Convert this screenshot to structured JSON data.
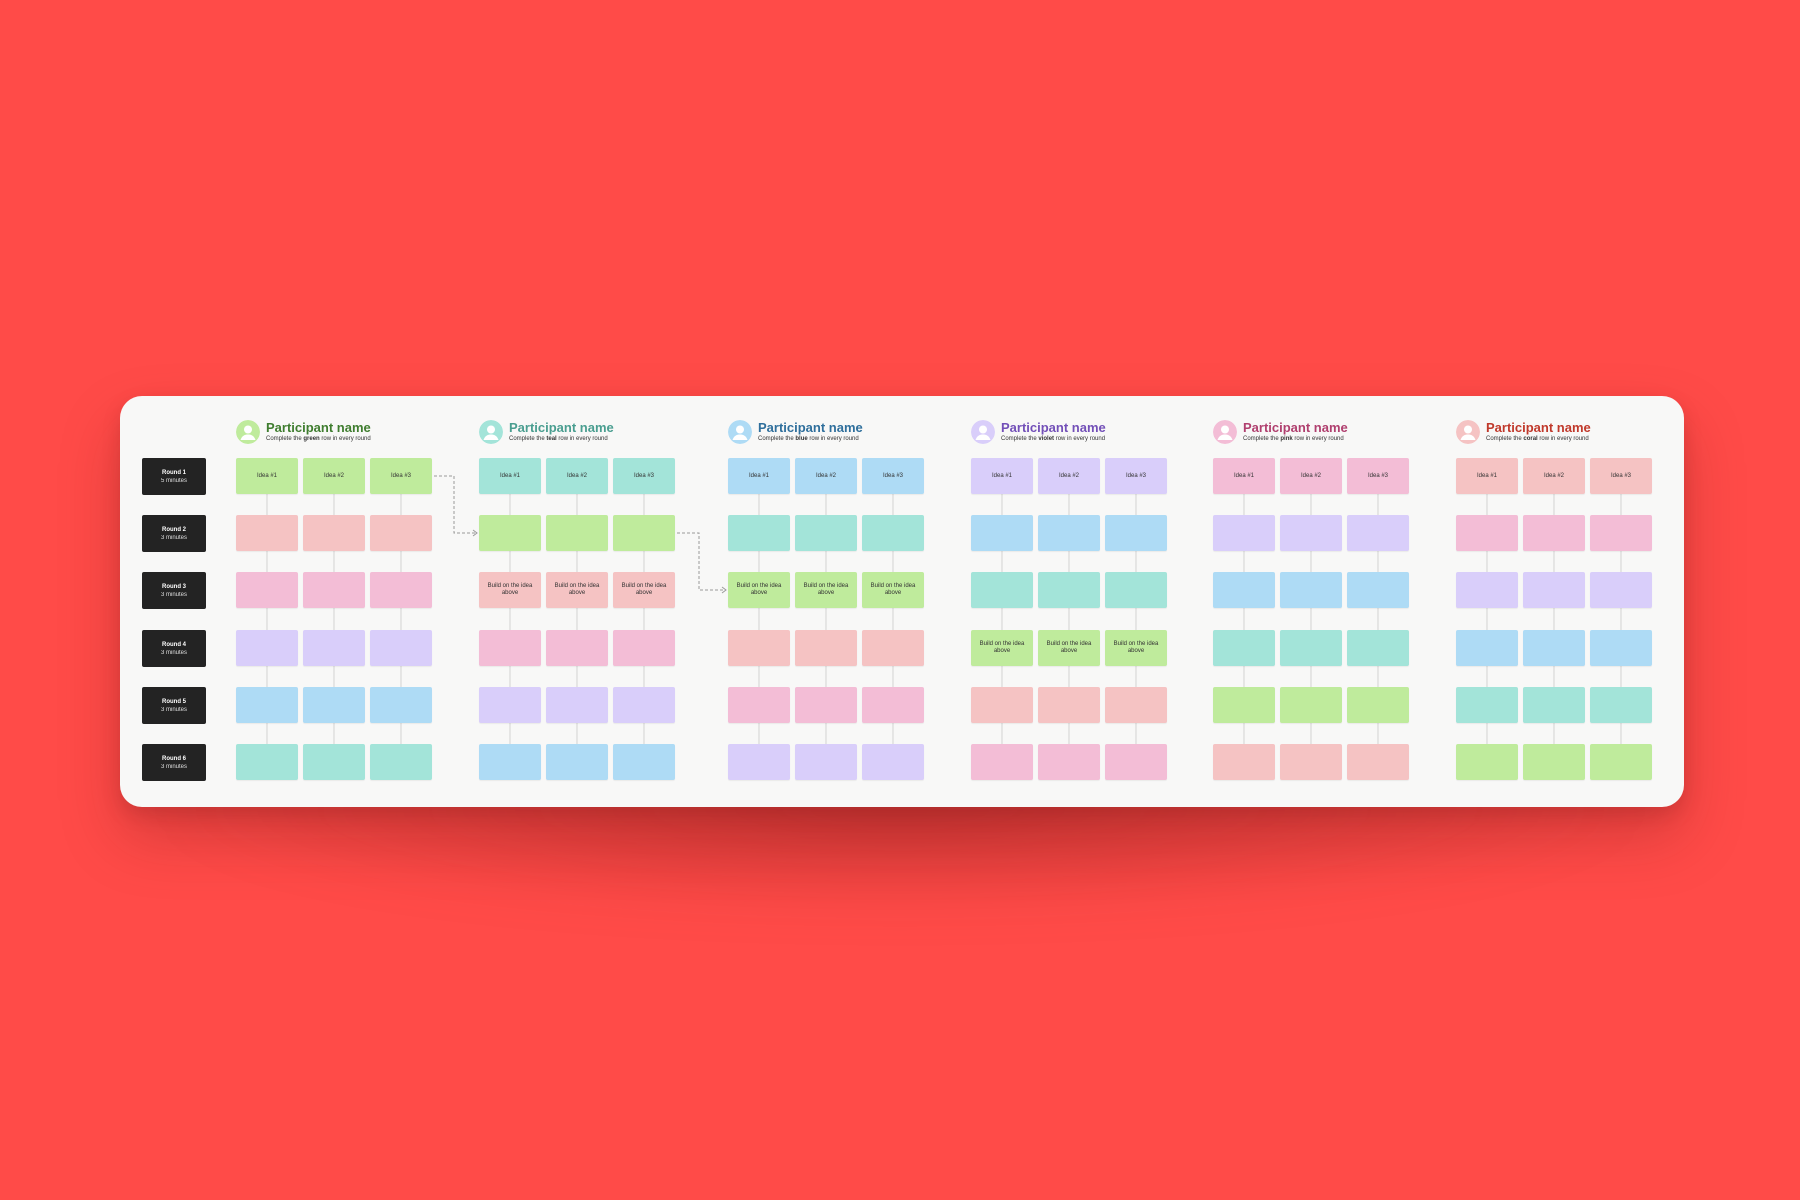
{
  "colors": {
    "background": "#ff4b48",
    "board": "#f8f8f7",
    "round_label_bg": "#232323",
    "green": "#bfeb9c",
    "teal": "#a3e4d9",
    "blue": "#aedbf5",
    "violet": "#d9cefa",
    "pink": "#f3bdd6",
    "coral": "#f5c3c3"
  },
  "rounds": [
    {
      "name": "Round 1",
      "time": "5 minutes"
    },
    {
      "name": "Round 2",
      "time": "3 minutes"
    },
    {
      "name": "Round 3",
      "time": "3 minutes"
    },
    {
      "name": "Round 4",
      "time": "3 minutes"
    },
    {
      "name": "Round 5",
      "time": "3 minutes"
    },
    {
      "name": "Round 6",
      "time": "3 minutes"
    }
  ],
  "participants": [
    {
      "name": "Participant name",
      "instr_pre": "Complete the ",
      "instr_color": "green",
      "instr_post": " row in every round",
      "title_color": "#3f7d2f",
      "avatar_color": "#bfeb9c",
      "rows": [
        "green",
        "coral",
        "pink",
        "violet",
        "blue",
        "teal"
      ]
    },
    {
      "name": "Participant name",
      "instr_pre": "Complete the ",
      "instr_color": "teal",
      "instr_post": " row in every round",
      "title_color": "#4a9e90",
      "avatar_color": "#a3e4d9",
      "rows": [
        "teal",
        "green",
        "coral",
        "pink",
        "violet",
        "blue"
      ]
    },
    {
      "name": "Participant name",
      "instr_pre": "Complete the ",
      "instr_color": "blue",
      "instr_post": " row in every round",
      "title_color": "#2f6f9c",
      "avatar_color": "#aedbf5",
      "rows": [
        "blue",
        "teal",
        "green",
        "coral",
        "pink",
        "violet"
      ]
    },
    {
      "name": "Participant name",
      "instr_pre": "Complete the ",
      "instr_color": "violet",
      "instr_post": " row in every round",
      "title_color": "#7350b8",
      "avatar_color": "#d9cefa",
      "rows": [
        "violet",
        "blue",
        "teal",
        "green",
        "coral",
        "pink"
      ]
    },
    {
      "name": "Participant name",
      "instr_pre": "Complete the ",
      "instr_color": "pink",
      "instr_post": " row in every round",
      "title_color": "#b0406f",
      "avatar_color": "#f3bdd6",
      "rows": [
        "pink",
        "violet",
        "blue",
        "teal",
        "green",
        "coral"
      ]
    },
    {
      "name": "Participant name",
      "instr_pre": "Complete the ",
      "instr_color": "coral",
      "instr_post": " row in every round",
      "title_color": "#c0392b",
      "avatar_color": "#f5c3c3",
      "rows": [
        "coral",
        "pink",
        "violet",
        "blue",
        "teal",
        "green"
      ]
    }
  ],
  "card_text": {
    "idea_labels": [
      "Idea #1",
      "Idea #2",
      "Idea #3"
    ],
    "build_label": "Build on the idea above",
    "labelled_cells": [
      {
        "participant": 1,
        "round": 2
      },
      {
        "participant": 2,
        "round": 2
      },
      {
        "participant": 3,
        "round": 3
      }
    ]
  }
}
